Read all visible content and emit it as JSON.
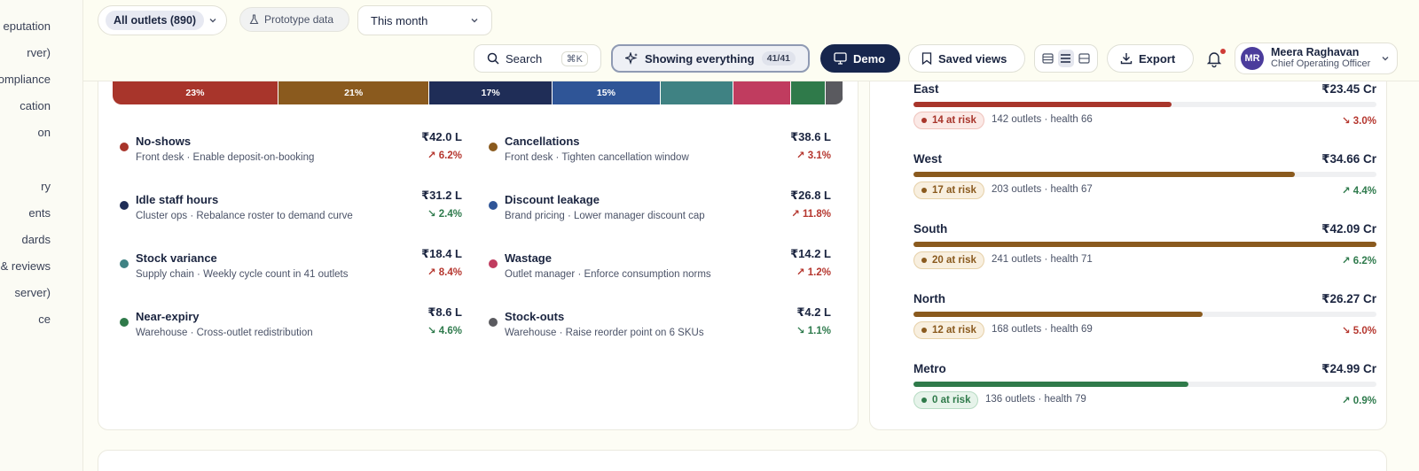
{
  "sidebar": {
    "items": [
      "eputation",
      "rver)",
      "ompliance",
      "cation",
      "on",
      "ry",
      "ents",
      "dards",
      "& reviews",
      "server)",
      "ce"
    ]
  },
  "filters": {
    "outlets": "All outlets (890)",
    "prototype": "Prototype data",
    "period": "This month"
  },
  "toolbar": {
    "search_label": "Search",
    "search_shortcut": "⌘K",
    "showing_label": "Showing everything",
    "showing_count": "41/41",
    "demo_label": "Demo",
    "saved_views_label": "Saved views",
    "export_label": "Export"
  },
  "user": {
    "initials": "MR",
    "name": "Meera Raghavan",
    "role": "Chief Operating Officer"
  },
  "stack": [
    {
      "label": "23%",
      "share": 23,
      "color": "#a8352b"
    },
    {
      "label": "21%",
      "share": 21,
      "color": "#8a5a1e"
    },
    {
      "label": "17%",
      "share": 17,
      "color": "#1f2d57"
    },
    {
      "label": "15%",
      "share": 15,
      "color": "#2f5597"
    },
    {
      "label": "",
      "share": 10,
      "color": "#3f8283"
    },
    {
      "label": "",
      "share": 8,
      "color": "#c03c5f"
    },
    {
      "label": "",
      "share": 4.6,
      "color": "#2f7a4a"
    },
    {
      "label": "",
      "share": 2.4,
      "color": "#5a5a5f"
    }
  ],
  "leakage": [
    {
      "name": "No-shows",
      "sub": "Front desk · Enable deposit-on-booking",
      "amount": "₹42.0 L",
      "change": "↗ 6.2%",
      "dir": "up",
      "color": "#a8352b"
    },
    {
      "name": "Cancellations",
      "sub": "Front desk · Tighten cancellation window",
      "amount": "₹38.6 L",
      "change": "↗ 3.1%",
      "dir": "up",
      "color": "#8a5a1e"
    },
    {
      "name": "Idle staff hours",
      "sub": "Cluster ops · Rebalance roster to demand curve",
      "amount": "₹31.2 L",
      "change": "↘ 2.4%",
      "dir": "down",
      "color": "#1f2d57"
    },
    {
      "name": "Discount leakage",
      "sub": "Brand pricing · Lower manager discount cap",
      "amount": "₹26.8 L",
      "change": "↗ 11.8%",
      "dir": "up",
      "color": "#2f5597"
    },
    {
      "name": "Stock variance",
      "sub": "Supply chain · Weekly cycle count in 41 outlets",
      "amount": "₹18.4 L",
      "change": "↗ 8.4%",
      "dir": "up",
      "color": "#3f8283"
    },
    {
      "name": "Wastage",
      "sub": "Outlet manager · Enforce consumption norms",
      "amount": "₹14.2 L",
      "change": "↗ 1.2%",
      "dir": "up",
      "color": "#c03c5f"
    },
    {
      "name": "Near-expiry",
      "sub": "Warehouse · Cross-outlet redistribution",
      "amount": "₹8.6 L",
      "change": "↘ 4.6%",
      "dir": "down",
      "color": "#2f7a4a"
    },
    {
      "name": "Stock-outs",
      "sub": "Warehouse · Raise reorder point on 6 SKUs",
      "amount": "₹4.2 L",
      "change": "↘ 1.1%",
      "dir": "down",
      "color": "#5a5a5f"
    }
  ],
  "regions": [
    {
      "name": "East",
      "value": "₹23.45 Cr",
      "progress": 0.557,
      "risk": "14 at risk",
      "meta": "142 outlets · health 66",
      "change": "↘ 3.0%",
      "dir": "up",
      "bar": "#a8352b",
      "riskBg": "#fbe9e6",
      "riskFg": "#a8352b",
      "riskBorder": "#efc2bb"
    },
    {
      "name": "West",
      "value": "₹34.66 Cr",
      "progress": 0.824,
      "risk": "17 at risk",
      "meta": "203 outlets · health 67",
      "change": "↗ 4.4%",
      "dir": "down",
      "bar": "#8a5a1e",
      "riskBg": "#f8efdf",
      "riskFg": "#8a5a1e",
      "riskBorder": "#e6d0a7"
    },
    {
      "name": "South",
      "value": "₹42.09 Cr",
      "progress": 1.0,
      "risk": "20 at risk",
      "meta": "241 outlets · health 71",
      "change": "↗ 6.2%",
      "dir": "down",
      "bar": "#8a5a1e",
      "riskBg": "#f8efdf",
      "riskFg": "#8a5a1e",
      "riskBorder": "#e6d0a7"
    },
    {
      "name": "North",
      "value": "₹26.27 Cr",
      "progress": 0.624,
      "risk": "12 at risk",
      "meta": "168 outlets · health 69",
      "change": "↘ 5.0%",
      "dir": "up",
      "bar": "#8a5a1e",
      "riskBg": "#f8efdf",
      "riskFg": "#8a5a1e",
      "riskBorder": "#e6d0a7"
    },
    {
      "name": "Metro",
      "value": "₹24.99 Cr",
      "progress": 0.594,
      "risk": "0 at risk",
      "meta": "136 outlets · health 79",
      "change": "↗ 0.9%",
      "dir": "down",
      "bar": "#2f7a4a",
      "riskBg": "#e6f3ea",
      "riskFg": "#2f7a4a",
      "riskBorder": "#b7dbc3"
    }
  ]
}
